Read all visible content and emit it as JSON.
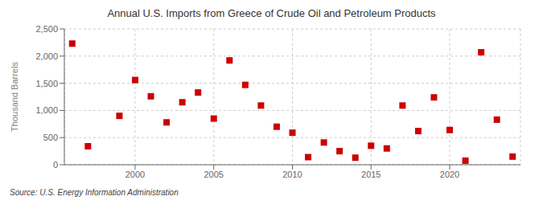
{
  "chart_data": {
    "type": "scatter",
    "title": "Annual U.S. Imports from Greece of Crude Oil and Petroleum Products",
    "ylabel": "Thousand Barrels",
    "source": "Source: U.S. Energy Information Administration",
    "x": [
      1996,
      1997,
      1999,
      2000,
      2001,
      2002,
      2003,
      2004,
      2005,
      2006,
      2007,
      2008,
      2009,
      2010,
      2011,
      2012,
      2013,
      2014,
      2015,
      2016,
      2017,
      2018,
      2019,
      2020,
      2021,
      2022,
      2023,
      2024
    ],
    "values": [
      2230,
      340,
      900,
      1560,
      1260,
      780,
      1150,
      1330,
      850,
      1920,
      1470,
      1090,
      700,
      590,
      140,
      410,
      250,
      130,
      350,
      300,
      1090,
      620,
      1240,
      640,
      75,
      2070,
      830,
      150
    ],
    "color": "#cc0000",
    "marker": "square",
    "xlim": [
      1995.5,
      2024.5
    ],
    "xticks": [
      2000,
      2005,
      2010,
      2015,
      2020
    ],
    "ylim": [
      0,
      2500
    ],
    "yticks": [
      0,
      500,
      {
        "value": 1000,
        "label": "1,000"
      },
      {
        "value": 1500,
        "label": "1,500"
      },
      {
        "value": 2000,
        "label": "2,000"
      },
      {
        "value": 2500,
        "label": "2,500"
      }
    ],
    "grid": true
  }
}
